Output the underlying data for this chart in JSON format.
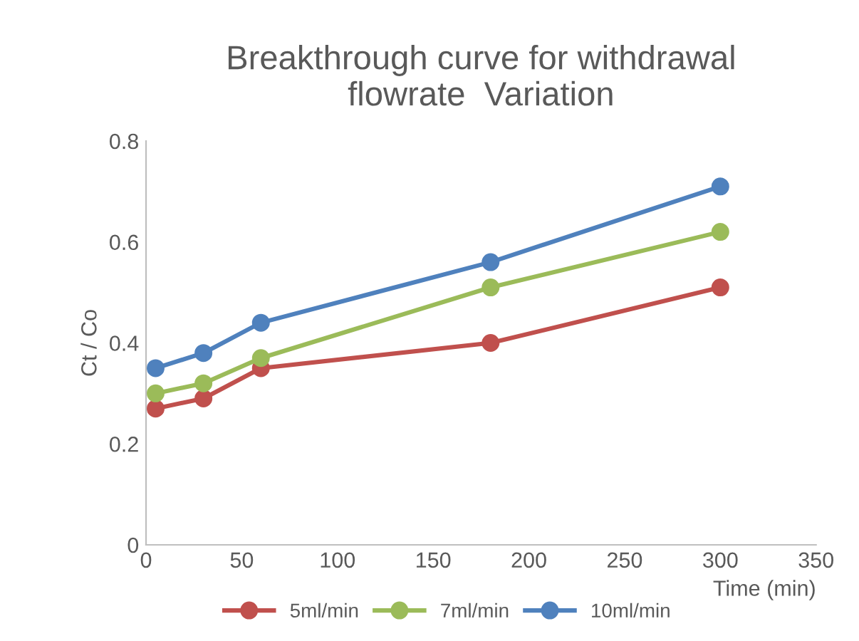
{
  "chart_data": {
    "type": "line",
    "title": "Breakthrough curve for withdrawal\nflowrate  Variation",
    "xlabel": "Time (min)",
    "ylabel": "Ct / Co",
    "x": [
      5,
      30,
      60,
      180,
      300
    ],
    "series": [
      {
        "name": "5ml/min",
        "color": "#c0504d",
        "values": [
          0.27,
          0.29,
          0.35,
          0.4,
          0.51
        ]
      },
      {
        "name": "7ml/min",
        "color": "#9bbb59",
        "values": [
          0.3,
          0.32,
          0.37,
          0.51,
          0.62
        ]
      },
      {
        "name": "10ml/min",
        "color": "#4f81bd",
        "values": [
          0.35,
          0.38,
          0.44,
          0.56,
          0.71
        ]
      }
    ],
    "xlim": [
      0,
      350
    ],
    "xticks": [
      0,
      50,
      100,
      150,
      200,
      250,
      300,
      350
    ],
    "ylim": [
      0,
      0.8
    ],
    "yticks": [
      0,
      0.2,
      0.4,
      0.6,
      0.8
    ],
    "marker": "circle",
    "line_style": "solid",
    "legend": "bottom"
  }
}
